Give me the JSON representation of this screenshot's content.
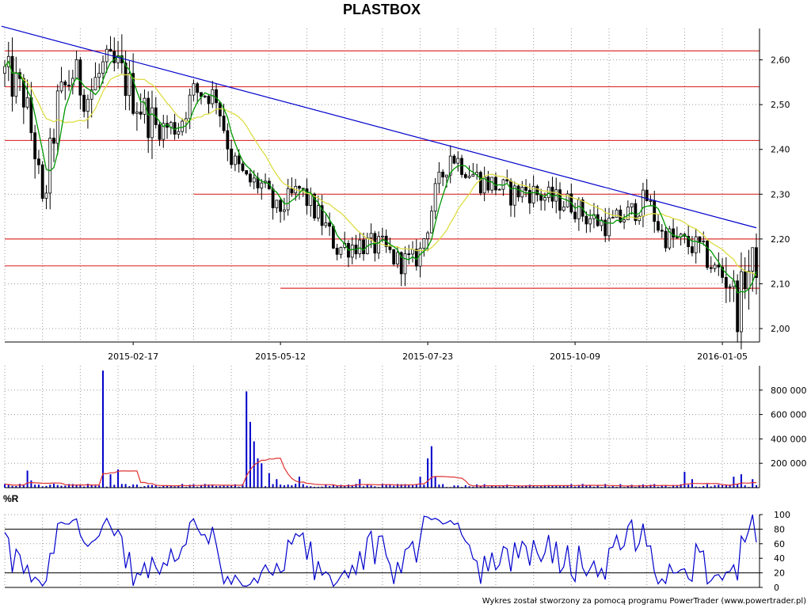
{
  "chart_data": {
    "type": "candlestick",
    "title": "PLASTBOX",
    "credit": "Wykres został stworzony za pomocą programu PowerTrader (www.powertrader.pl)",
    "colors": {
      "up_candle": "#ffffff",
      "down_candle": "#000000",
      "ma_short": "#009900",
      "ma_long": "#dddd44",
      "trendline": "#0000cc",
      "support_resistance": "#e03030",
      "volume_bar": "#0000cc",
      "volume_avg": "#e03030",
      "williams_r": "#0000cc",
      "grid": "#999999"
    },
    "price_panel": {
      "y_range": [
        1.97,
        2.67
      ],
      "y_ticks": [
        2.0,
        2.1,
        2.2,
        2.3,
        2.4,
        2.5,
        2.6
      ],
      "y_tick_labels": [
        "2,00",
        "2,10",
        "2,20",
        "2,30",
        "2,40",
        "2,50",
        "2,60"
      ],
      "x_tick_labels": [
        "2015-02-17",
        "2015-05-12",
        "2015-07-23",
        "2015-10-09",
        "2016-01-05"
      ],
      "x_tick_index": [
        34,
        73,
        112,
        151,
        190
      ],
      "n_days": 200,
      "trendline": {
        "start": {
          "index": 0,
          "price": 2.675
        },
        "end": {
          "index": 199,
          "price": 2.225
        }
      },
      "levels": [
        {
          "price": 2.62,
          "from_index": 0
        },
        {
          "price": 2.54,
          "from_index": 0
        },
        {
          "price": 2.42,
          "from_index": 0
        },
        {
          "price": 2.3,
          "from_index": 50
        },
        {
          "price": 2.2,
          "from_index": 0
        },
        {
          "price": 2.14,
          "from_index": 0
        },
        {
          "price": 2.09,
          "from_index": 73
        }
      ],
      "anchors": [
        [
          0,
          2.57
        ],
        [
          5,
          2.52
        ],
        [
          8,
          2.4
        ],
        [
          10,
          2.26
        ],
        [
          14,
          2.5
        ],
        [
          18,
          2.57
        ],
        [
          22,
          2.52
        ],
        [
          26,
          2.58
        ],
        [
          30,
          2.58
        ],
        [
          34,
          2.52
        ],
        [
          40,
          2.45
        ],
        [
          46,
          2.45
        ],
        [
          50,
          2.53
        ],
        [
          56,
          2.52
        ],
        [
          60,
          2.38
        ],
        [
          64,
          2.33
        ],
        [
          68,
          2.32
        ],
        [
          72,
          2.26
        ],
        [
          78,
          2.31
        ],
        [
          84,
          2.24
        ],
        [
          88,
          2.18
        ],
        [
          94,
          2.19
        ],
        [
          100,
          2.18
        ],
        [
          104,
          2.15
        ],
        [
          108,
          2.15
        ],
        [
          110,
          2.17
        ],
        [
          114,
          2.3
        ],
        [
          118,
          2.39
        ],
        [
          122,
          2.36
        ],
        [
          126,
          2.33
        ],
        [
          130,
          2.32
        ],
        [
          134,
          2.3
        ],
        [
          138,
          2.31
        ],
        [
          144,
          2.29
        ],
        [
          150,
          2.28
        ],
        [
          154,
          2.25
        ],
        [
          160,
          2.23
        ],
        [
          166,
          2.26
        ],
        [
          170,
          2.29
        ],
        [
          174,
          2.21
        ],
        [
          180,
          2.19
        ],
        [
          184,
          2.18
        ],
        [
          188,
          2.13
        ],
        [
          192,
          2.11
        ],
        [
          194,
          2.04
        ],
        [
          196,
          2.12
        ],
        [
          199,
          2.15
        ]
      ]
    },
    "volume_panel": {
      "y_range": [
        0,
        1000000
      ],
      "y_ticks": [
        200000,
        400000,
        600000,
        800000
      ],
      "y_tick_labels": [
        "200 000",
        "400 000",
        "600 000",
        "800 000"
      ],
      "spikes": [
        [
          6,
          140000
        ],
        [
          7,
          60000
        ],
        [
          26,
          960000
        ],
        [
          28,
          110000
        ],
        [
          30,
          150000
        ],
        [
          64,
          790000
        ],
        [
          65,
          540000
        ],
        [
          66,
          380000
        ],
        [
          67,
          240000
        ],
        [
          68,
          200000
        ],
        [
          70,
          120000
        ],
        [
          72,
          70000
        ],
        [
          78,
          90000
        ],
        [
          94,
          70000
        ],
        [
          110,
          90000
        ],
        [
          112,
          240000
        ],
        [
          113,
          340000
        ],
        [
          114,
          90000
        ],
        [
          180,
          130000
        ],
        [
          182,
          70000
        ],
        [
          193,
          90000
        ],
        [
          195,
          110000
        ],
        [
          198,
          70000
        ]
      ],
      "base_volume": 25000
    },
    "williams_r_panel": {
      "label": "%R",
      "y_range": [
        0,
        100
      ],
      "y_ticks": [
        0,
        20,
        40,
        60,
        80,
        100
      ],
      "y_tick_labels": [
        "0",
        "20",
        "40",
        "60",
        "80",
        "100"
      ],
      "levels": [
        20,
        80
      ]
    }
  }
}
